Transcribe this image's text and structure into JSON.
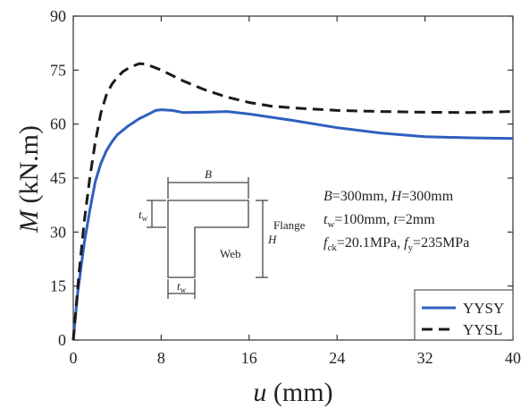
{
  "chart_data": {
    "type": "line",
    "title": "",
    "xlabel": "u (mm)",
    "xlabel_var": "u",
    "xlabel_unit": " (mm)",
    "ylabel": "M (kN.m)",
    "ylabel_var": "M",
    "ylabel_unit": " (kN.m)",
    "xlim": [
      0,
      40
    ],
    "ylim": [
      0,
      90
    ],
    "xticks": [
      0,
      8,
      16,
      24,
      32,
      40
    ],
    "yticks": [
      0,
      15,
      30,
      45,
      60,
      75,
      90
    ],
    "grid": false,
    "legend_position": "bottom-right",
    "series": [
      {
        "name": "YYSY",
        "color": "#2f5fbf",
        "style": "solid",
        "x": [
          0,
          0.4,
          1,
          1.5,
          2,
          2.5,
          3,
          3.5,
          4,
          5,
          6,
          7,
          7.5,
          8,
          9,
          10,
          12,
          14,
          16,
          20,
          24,
          28,
          32,
          36,
          40
        ],
        "y": [
          0,
          13,
          27,
          36,
          44,
          49,
          52.5,
          55,
          57,
          59.5,
          61.5,
          63,
          63.8,
          64,
          63.8,
          63.2,
          63.3,
          63.5,
          62.8,
          61,
          59,
          57.5,
          56.5,
          56.2,
          56
        ]
      },
      {
        "name": "YYSL",
        "color": "#1a1a1a",
        "style": "dashed",
        "x": [
          0,
          0.5,
          1,
          1.5,
          2,
          2.5,
          3,
          3.5,
          4,
          4.5,
          5,
          5.5,
          6,
          6.5,
          7,
          8,
          10,
          12,
          14,
          16,
          18,
          20,
          24,
          28,
          32,
          36,
          40
        ],
        "y": [
          0,
          18,
          33,
          45,
          55,
          63,
          68,
          71,
          73,
          74.5,
          75.5,
          76.2,
          76.8,
          76.7,
          76.2,
          75,
          72,
          69.5,
          67.5,
          66,
          65,
          64.5,
          63.8,
          63.5,
          63.3,
          63.2,
          63.5
        ]
      }
    ],
    "annotations": {
      "B_label": "B",
      "H_label": "H",
      "tw_top_t": "t",
      "tw_top_sub": "w",
      "tw_bottom_t": "t",
      "tw_bottom_sub": "w",
      "web_label": "Web",
      "flange_label": "Flange",
      "line1_B": "B",
      "line1_a": "=300mm, ",
      "line1_H": "H",
      "line1_b": "=300mm",
      "line2_t": "t",
      "line2_sub": "w",
      "line2_a": "=100mm, ",
      "line2_t2": "t",
      "line2_b": "=2mm",
      "line3_f": "f",
      "line3_sub": "ck",
      "line3_a": "=20.1MPa, ",
      "line3_f2": "f",
      "line3_sub2": "y",
      "line3_b": "=235MPa"
    }
  }
}
